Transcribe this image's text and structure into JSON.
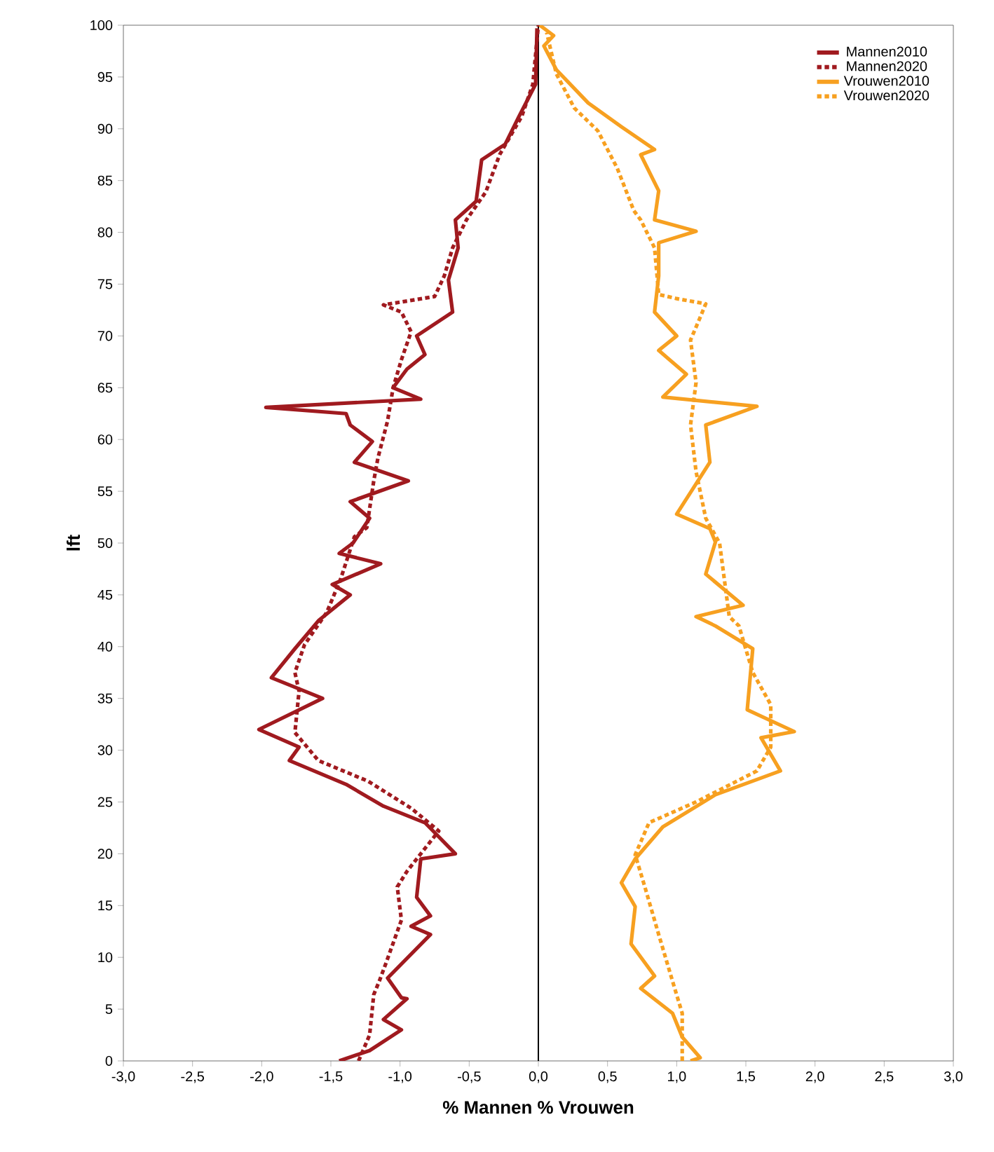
{
  "chart_data": {
    "type": "line",
    "xlabel": "% Mannen   % Vrouwen",
    "ylabel": "lft",
    "xlim": [
      -3,
      3
    ],
    "ylim": [
      0,
      100
    ],
    "xticks": [
      {
        "value": -3,
        "label": "-3,0"
      },
      {
        "value": -2.5,
        "label": "-2,5"
      },
      {
        "value": -2,
        "label": "-2,0"
      },
      {
        "value": -1.5,
        "label": "-1,5"
      },
      {
        "value": -1,
        "label": "-1,0"
      },
      {
        "value": -0.5,
        "label": "-0,5"
      },
      {
        "value": 0,
        "label": "0,0"
      },
      {
        "value": 0.5,
        "label": "0,5"
      },
      {
        "value": 1,
        "label": "1,0"
      },
      {
        "value": 1.5,
        "label": "1,5"
      },
      {
        "value": 2,
        "label": "2,0"
      },
      {
        "value": 2.5,
        "label": "2,5"
      },
      {
        "value": 3,
        "label": "3,0"
      }
    ],
    "yticks": [
      0,
      5,
      10,
      15,
      20,
      25,
      30,
      35,
      40,
      45,
      50,
      55,
      60,
      65,
      70,
      75,
      80,
      85,
      90,
      95,
      100
    ],
    "legend": "top right",
    "ref_lines": [
      {
        "axis": "x",
        "value": 0,
        "color": "#000000"
      }
    ],
    "series": [
      {
        "name": "Mannen2010",
        "color": "#a01a1f",
        "line_style": "solid",
        "x": [
          -1.44,
          -1.22,
          -0.99,
          -1.12,
          -0.95,
          -0.99,
          -1.09,
          -0.78,
          -0.92,
          -0.78,
          -0.88,
          -0.85,
          -0.6,
          -0.82,
          -1.12,
          -1.39,
          -1.8,
          -1.73,
          -2.02,
          -1.56,
          -1.93,
          -1.76,
          -1.59,
          -1.36,
          -1.49,
          -1.14,
          -1.44,
          -1.34,
          -1.22,
          -1.36,
          -0.94,
          -1.33,
          -1.2,
          -1.36,
          -1.39,
          -1.97,
          -0.85,
          -1.05,
          -0.95,
          -0.82,
          -0.88,
          -0.62,
          -0.65,
          -0.58,
          -0.6,
          -0.45,
          -0.41,
          -0.24,
          -0.14,
          -0.02,
          -0.01
        ],
        "values": [
          0,
          1,
          3,
          4,
          6,
          6.1,
          8,
          12.2,
          13,
          14,
          15.8,
          19.5,
          20,
          23,
          24.6,
          26.7,
          29,
          30.3,
          32,
          35,
          37,
          39.8,
          42.5,
          45,
          46,
          48,
          49,
          50,
          52.4,
          54,
          56,
          57.8,
          59.8,
          61.4,
          62.5,
          63.1,
          63.9,
          65,
          66.8,
          68.2,
          70,
          72.3,
          75.4,
          78.5,
          81.2,
          83,
          87,
          88.5,
          91.2,
          94.3,
          99.7
        ]
      },
      {
        "name": "Mannen2020",
        "color": "#a01a1f",
        "line_style": "dotted",
        "x": [
          -1.3,
          -1.22,
          -1.19,
          -1.15,
          -1.1,
          -0.99,
          -1.02,
          -0.95,
          -0.72,
          -0.92,
          -1.23,
          -1.59,
          -1.76,
          -1.73,
          -1.76,
          -1.69,
          -1.53,
          -1.43,
          -1.33,
          -1.24,
          -1.19,
          -1.16,
          -1.09,
          -1.05,
          -0.99,
          -0.92,
          -0.99,
          -1.12,
          -0.75,
          -0.68,
          -0.62,
          -0.52,
          -0.38,
          -0.28,
          -0.12,
          -0.04,
          0
        ],
        "values": [
          0,
          2.5,
          6.4,
          7.7,
          9.5,
          13.6,
          16.8,
          18.3,
          22.2,
          24.4,
          27,
          29,
          31.7,
          35.7,
          37.5,
          40.2,
          43.3,
          46.5,
          50.6,
          51.5,
          56,
          58.2,
          61.8,
          65,
          67.7,
          70.4,
          72.3,
          73,
          73.8,
          75.8,
          78.5,
          81.2,
          83.9,
          87.5,
          91.2,
          94.3,
          100
        ]
      },
      {
        "name": "Vrouwen2010",
        "color": "#f7a020",
        "line_style": "solid",
        "x": [
          1.1,
          1.17,
          1.04,
          0.97,
          0.74,
          0.84,
          0.67,
          0.7,
          0.6,
          0.7,
          0.9,
          1.28,
          1.75,
          1.61,
          1.85,
          1.51,
          1.55,
          1.28,
          1.14,
          1.48,
          1.21,
          1.28,
          1.24,
          1.0,
          1.24,
          1.21,
          1.58,
          0.9,
          1.07,
          0.87,
          1.0,
          0.84,
          0.87,
          0.87,
          1.14,
          0.84,
          0.87,
          0.74,
          0.84,
          0.6,
          0.36,
          0.13,
          0.04,
          0.11,
          0.01
        ],
        "values": [
          0,
          0.3,
          2.3,
          4.6,
          7,
          8.2,
          11.3,
          14.9,
          17.2,
          19.5,
          22.6,
          25.7,
          28,
          31.2,
          31.8,
          33.9,
          39.8,
          42,
          42.9,
          44,
          47,
          50.1,
          51.4,
          52.8,
          57.8,
          61.4,
          63.2,
          64.1,
          66.3,
          68.6,
          70,
          72.3,
          75.8,
          79,
          80.1,
          81.2,
          84,
          87.5,
          88,
          90.2,
          92.5,
          95.7,
          98,
          99,
          100
        ]
      },
      {
        "name": "Vrouwen2020",
        "color": "#f7a020",
        "line_style": "dotted",
        "x": [
          1.04,
          1.04,
          0.97,
          0.87,
          0.77,
          0.7,
          0.8,
          1.14,
          1.58,
          1.68,
          1.68,
          1.55,
          1.45,
          1.38,
          1.31,
          1.21,
          1.14,
          1.1,
          1.14,
          1.1,
          1.17,
          1.21,
          1.0,
          0.87,
          0.84,
          0.74,
          0.69,
          0.57,
          0.43,
          0.26,
          0.13,
          0.06
        ],
        "values": [
          0,
          4.6,
          7.7,
          12.2,
          16.8,
          19.9,
          23,
          25,
          28,
          30.3,
          34.4,
          37.5,
          42,
          42.9,
          50,
          52.4,
          56.9,
          61.4,
          65.5,
          69.6,
          71.8,
          73.1,
          73.6,
          74,
          78.5,
          81.2,
          82.1,
          86.2,
          89.8,
          92,
          95.3,
          99.3
        ]
      }
    ]
  }
}
